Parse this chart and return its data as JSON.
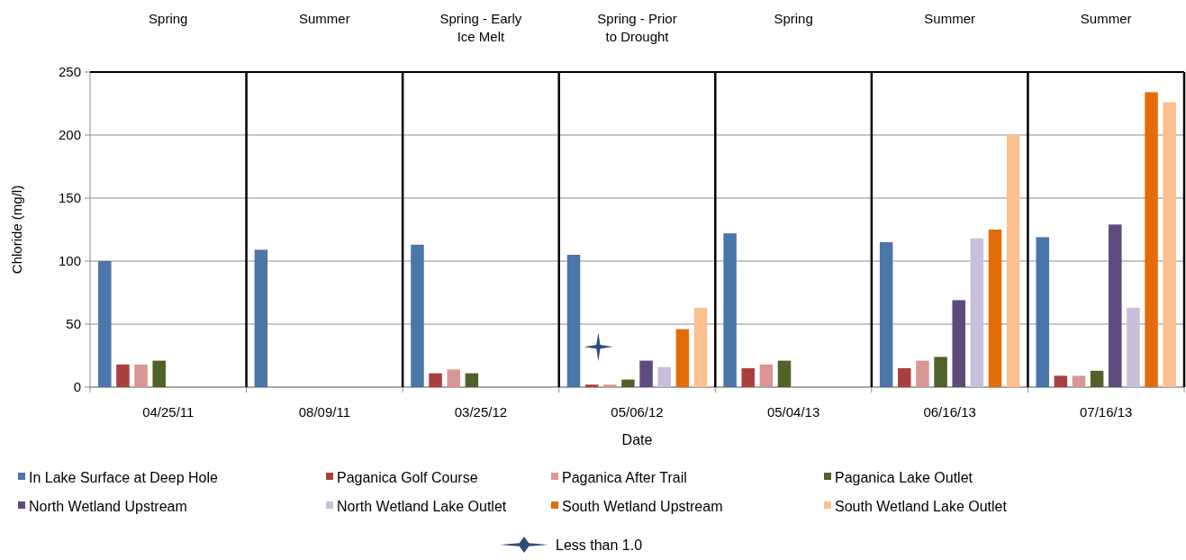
{
  "chart_data": {
    "type": "bar",
    "xlabel": "Date",
    "ylabel": "Chloride (mg/l)",
    "categories": [
      "04/25/11",
      "08/09/11",
      "03/25/12",
      "05/06/12",
      "05/04/13",
      "06/16/13",
      "07/16/13"
    ],
    "series": [
      {
        "name": "In Lake Surface at Deep Hole",
        "color": "#4a76a8",
        "values": [
          100,
          109,
          113,
          105,
          122,
          115,
          119
        ]
      },
      {
        "name": "Paganica Golf Course",
        "color": "#a8403e",
        "values": [
          18,
          null,
          11,
          2,
          15,
          15,
          9
        ]
      },
      {
        "name": "Paganica After Trail",
        "color": "#d99694",
        "values": [
          18,
          null,
          14,
          2,
          18,
          21,
          9
        ]
      },
      {
        "name": "Paganica Lake Outlet",
        "color": "#4f6228",
        "values": [
          21,
          null,
          11,
          6,
          21,
          24,
          13
        ]
      },
      {
        "name": "North Wetland Upstream",
        "color": "#5f4a7e",
        "values": [
          null,
          null,
          null,
          21,
          null,
          69,
          129
        ]
      },
      {
        "name": "North Wetland Lake Outlet",
        "color": "#c8bfdc",
        "values": [
          null,
          null,
          null,
          16,
          null,
          118,
          63
        ]
      },
      {
        "name": "South Wetland Upstream",
        "color": "#e46c0a",
        "values": [
          null,
          null,
          null,
          46,
          null,
          125,
          234
        ]
      },
      {
        "name": "South Wetland Lake Outlet",
        "color": "#fac08f",
        "values": [
          null,
          null,
          null,
          63,
          null,
          200,
          226
        ]
      },
      {
        "name": "Less than 1.0",
        "type": "scatter",
        "marker": "star",
        "color": "#2f4d7a",
        "x": [
          "05/06/12"
        ],
        "values": [
          32
        ]
      }
    ],
    "ylim": [
      0,
      250
    ],
    "yticks": [
      0,
      50,
      100,
      150,
      200,
      250
    ],
    "grid": "y",
    "legend": "bottom",
    "annotations": [
      "Spring",
      "Summer",
      "Spring - Early Ice Melt",
      "Spring - Prior to Drought",
      "Spring",
      "Summer",
      "Summer"
    ]
  }
}
